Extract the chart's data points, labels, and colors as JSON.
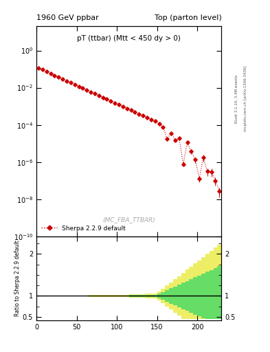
{
  "title_left": "1960 GeV ppbar",
  "title_right": "Top (parton level)",
  "plot_title_text": "pT (ttbar) (Mtt < 450 dy > 0)",
  "ylabel_ratio": "Ratio to Sherpa 2.2.9 default",
  "watermark": "(MC_FBA_TTBAR)",
  "right_label1": "Rivet 3.1.10, 3.4M events",
  "right_label2": "mcplots.cern.ch [arXiv:1306.3436]",
  "legend_label": "Sherpa 2.2.9 default",
  "line_color": "#cc0000",
  "ylim_main": [
    1e-10,
    20
  ],
  "ylim_ratio": [
    0.42,
    2.42
  ],
  "xlim": [
    0,
    230
  ],
  "xticks": [
    0,
    50,
    100,
    150,
    200
  ],
  "background_color": "#ffffff",
  "green_color": "#66dd66",
  "yellow_color": "#eeee66"
}
